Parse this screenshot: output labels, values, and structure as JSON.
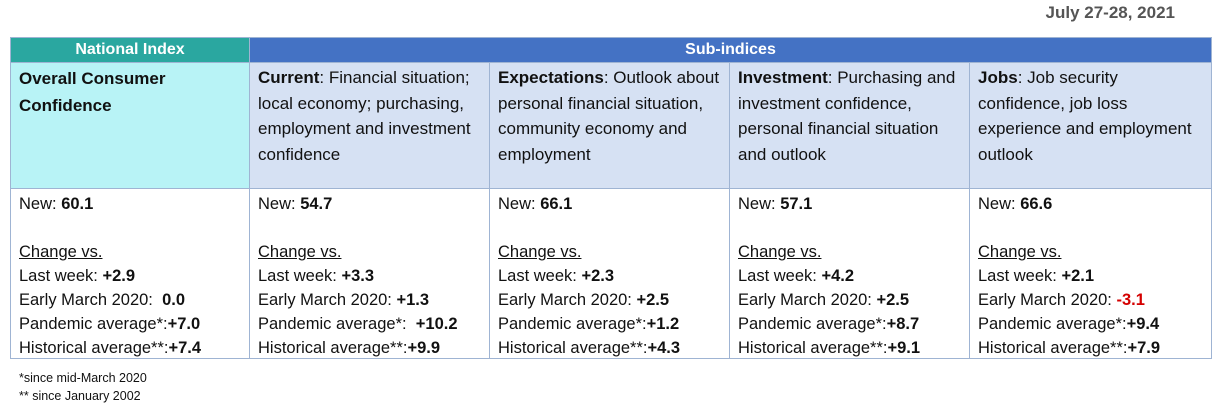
{
  "date": "July 27-28, 2021",
  "header": {
    "national": "National Index",
    "sub": "Sub-indices"
  },
  "national": {
    "title": "Overall Consumer Confidence",
    "new_label": "New:",
    "new": "60.1",
    "change_label": "Change vs.",
    "last_week_label": "Last week:",
    "last_week": "+2.9",
    "early_march_label": "Early March 2020:",
    "early_march": "0.0",
    "pandemic_label": "Pandemic average*:",
    "pandemic": "+7.0",
    "historical_label": "Historical average**:",
    "historical": "+7.4"
  },
  "subs": [
    {
      "name": "Current",
      "desc": ": Financial situation; local economy; purchasing, employment and investment confidence",
      "new_label": "New:",
      "new": "54.7",
      "change_label": "Change vs.",
      "last_week_label": "Last week:",
      "last_week": "+3.3",
      "early_march_label": "Early March 2020:",
      "early_march": "+1.3",
      "pandemic_label": "Pandemic average*:",
      "pandemic": "+10.2",
      "historical_label": "Historical average**:",
      "historical": "+9.9"
    },
    {
      "name": "Expectations",
      "desc": ": Outlook about personal financial situation, community economy and employment",
      "new_label": "New:",
      "new": "66.1",
      "change_label": "Change vs.",
      "last_week_label": "Last week:",
      "last_week": "+2.3",
      "early_march_label": "Early March 2020:",
      "early_march": "+2.5",
      "pandemic_label": "Pandemic average*:",
      "pandemic": "+1.2",
      "historical_label": "Historical average**:",
      "historical": "+4.3"
    },
    {
      "name": "Investment",
      "desc": ": Purchasing and investment confidence, personal financial situation and outlook",
      "new_label": "New:",
      "new": "57.1",
      "change_label": "Change vs.",
      "last_week_label": "Last week:",
      "last_week": "+4.2",
      "early_march_label": "Early March 2020:",
      "early_march": "+2.5",
      "pandemic_label": "Pandemic average*:",
      "pandemic": "+8.7",
      "historical_label": "Historical average**:",
      "historical": "+9.1"
    },
    {
      "name": "Jobs",
      "desc": ": Job security confidence, job loss experience and employment outlook",
      "new_label": "New:",
      "new": "66.6",
      "change_label": "Change vs.",
      "last_week_label": "Last week:",
      "last_week": "+2.1",
      "early_march_label": "Early March 2020:",
      "early_march": "-3.1",
      "pandemic_label": "Pandemic average*:",
      "pandemic": "+9.4",
      "historical_label": "Historical average**:",
      "historical": "+7.9"
    }
  ],
  "colors": {
    "national_header": "#2aa7a0",
    "sub_header": "#4472c4",
    "national_desc": "#b8f3f6",
    "sub_desc": "#d6e1f3",
    "negative": "#d40000"
  },
  "footnotes": [
    "*since mid-March 2020",
    "** since January 2002"
  ]
}
